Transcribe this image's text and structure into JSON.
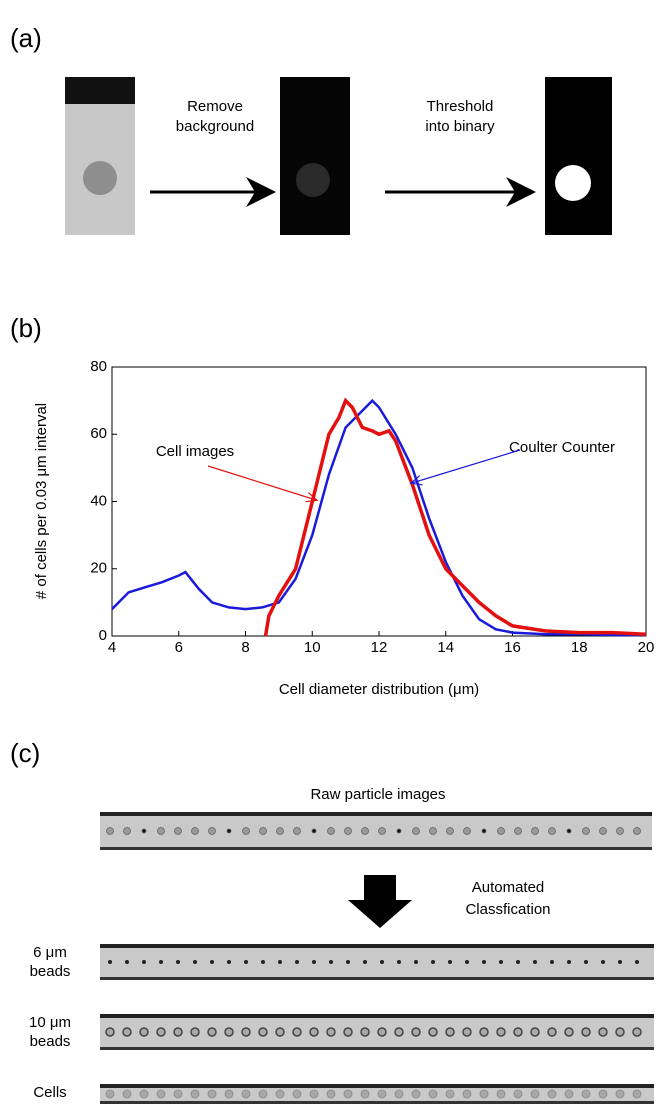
{
  "panel_a": {
    "label": "(a)",
    "step1": [
      "Remove",
      "background"
    ],
    "step2": [
      "Threshold",
      "into binary"
    ]
  },
  "chart_data": {
    "type": "line",
    "label": "(b)",
    "x_label": "Cell diameter distribution (μm)",
    "y_label": "# of cells  per 0.03 μm interval",
    "xlim": [
      4,
      20
    ],
    "ylim": [
      0,
      80
    ],
    "xticks": [
      4,
      6,
      8,
      10,
      12,
      14,
      16,
      18,
      20
    ],
    "yticks": [
      0,
      20,
      40,
      60,
      80
    ],
    "series": [
      {
        "name": "Coulter Counter",
        "color": "#1a1adb",
        "x": [
          4,
          4.5,
          5,
          5.5,
          6,
          6.2,
          6.6,
          7,
          7.5,
          8,
          8.5,
          9,
          9.5,
          10,
          10.5,
          11,
          11.5,
          11.8,
          12,
          12.5,
          13,
          13.5,
          14,
          14.5,
          15,
          15.5,
          16,
          17,
          18,
          19,
          20
        ],
        "values": [
          8,
          13,
          14.5,
          16,
          18,
          19,
          14,
          10,
          8.5,
          8,
          8.5,
          10,
          17,
          30,
          48,
          62,
          67,
          70,
          68,
          60,
          50,
          35,
          22,
          12,
          5,
          2,
          1,
          0.5,
          0.5,
          0.3,
          0.3
        ]
      },
      {
        "name": "Cell images",
        "color": "#e41010",
        "x": [
          8.6,
          8.7,
          9,
          9.5,
          10,
          10.5,
          10.8,
          11,
          11.2,
          11.5,
          11.8,
          12,
          12.3,
          12.5,
          13,
          13.5,
          14,
          14.5,
          15,
          15.5,
          16,
          17,
          18,
          19,
          20
        ],
        "values": [
          0,
          6,
          12,
          20,
          40,
          60,
          65,
          70,
          68,
          62,
          61,
          60,
          61,
          58,
          45,
          30,
          20,
          15,
          10,
          6,
          3,
          1.5,
          1,
          1,
          0.5
        ]
      }
    ]
  },
  "panel_c": {
    "label": "(c)",
    "raw_title": "Raw particle images",
    "step": [
      "Automated",
      "Classfication"
    ],
    "rows": [
      [
        "6 μm",
        "beads"
      ],
      [
        "10 μm",
        "beads"
      ],
      [
        "Cells"
      ]
    ]
  }
}
